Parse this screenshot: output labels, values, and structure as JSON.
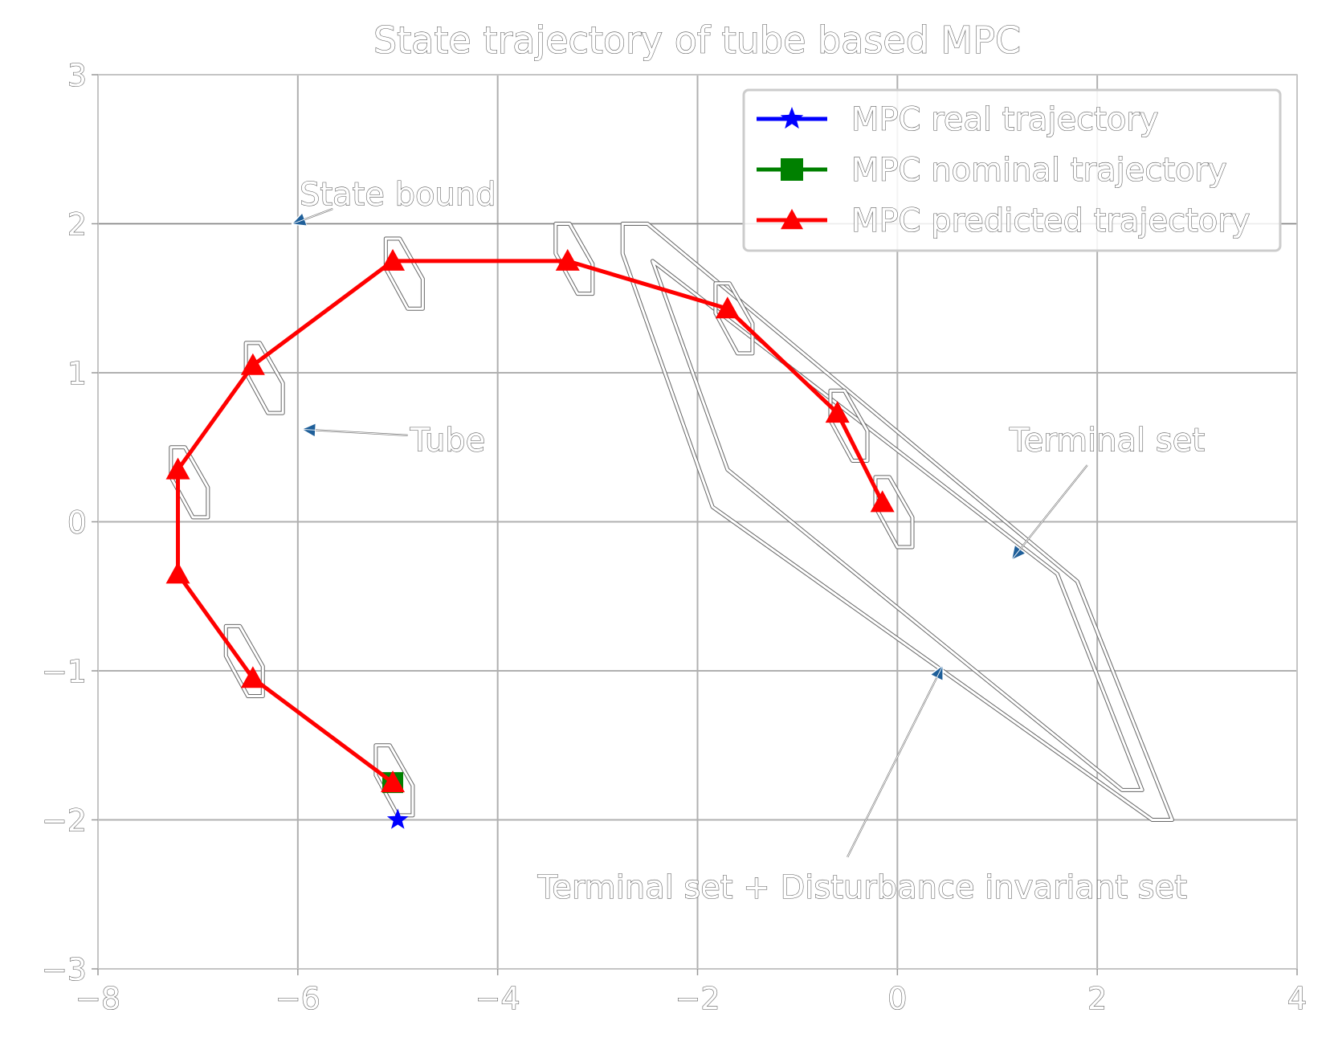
{
  "chart_data": {
    "type": "line",
    "title": "State trajectory of tube based MPC",
    "xlabel": "",
    "ylabel": "",
    "xlim": [
      -8,
      4
    ],
    "ylim": [
      -3,
      3
    ],
    "xticks": [
      -8,
      -6,
      -4,
      -2,
      0,
      2,
      4
    ],
    "yticks": [
      -3,
      -2,
      -1,
      0,
      1,
      2,
      3
    ],
    "xtick_labels": [
      "−8",
      "−6",
      "−4",
      "−2",
      "0",
      "2",
      "4"
    ],
    "ytick_labels": [
      "−3",
      "−2",
      "−1",
      "0",
      "1",
      "2",
      "3"
    ],
    "grid": true,
    "legend": "upper right",
    "series": [
      {
        "name": "MPC real trajectory",
        "color": "#0000ff",
        "marker": "star",
        "x": [
          -5.0
        ],
        "y": [
          -2.0
        ]
      },
      {
        "name": "MPC nominal trajectory",
        "color": "#008000",
        "marker": "square",
        "x": [
          -5.05
        ],
        "y": [
          -1.75
        ]
      },
      {
        "name": "MPC predicted trajectory",
        "color": "#ff0000",
        "marker": "triangle",
        "x": [
          -5.05,
          -6.45,
          -7.2,
          -7.2,
          -6.45,
          -5.05,
          -3.3,
          -1.7,
          -0.6,
          -0.15
        ],
        "y": [
          -1.75,
          -1.05,
          -0.35,
          0.35,
          1.05,
          1.75,
          1.75,
          1.43,
          0.73,
          0.13
        ]
      }
    ],
    "state_bound": {
      "y": 2
    },
    "tubes": [
      {
        "cx": -5.05,
        "cy": -1.75
      },
      {
        "cx": -6.55,
        "cy": -0.95
      },
      {
        "cx": -7.1,
        "cy": 0.25
      },
      {
        "cx": -6.35,
        "cy": 0.95
      },
      {
        "cx": -4.95,
        "cy": 1.65
      },
      {
        "cx": -3.25,
        "cy": 1.75
      },
      {
        "cx": -1.65,
        "cy": 1.35
      },
      {
        "cx": -0.5,
        "cy": 0.63
      },
      {
        "cx": -0.05,
        "cy": 0.05
      }
    ],
    "terminal_set_outer": [
      [
        -2.5,
        2.0
      ],
      [
        1.8,
        -0.4
      ],
      [
        2.75,
        -2.0
      ],
      [
        2.55,
        -2.0
      ],
      [
        -1.85,
        0.1
      ],
      [
        -2.75,
        1.8
      ],
      [
        -2.75,
        2.0
      ]
    ],
    "terminal_set_inner": [
      [
        -2.45,
        1.75
      ],
      [
        1.6,
        -0.35
      ],
      [
        2.45,
        -1.8
      ],
      [
        2.25,
        -1.8
      ],
      [
        -1.7,
        0.35
      ],
      [
        -2.45,
        1.75
      ]
    ],
    "annotations": [
      {
        "text": "State bound",
        "text_xy": [
          -5.0,
          2.2
        ],
        "arrow_from": [
          -5.65,
          2.1
        ],
        "arrow_to": [
          -6.05,
          2.0
        ]
      },
      {
        "text": "Tube",
        "text_xy": [
          -4.5,
          0.55
        ],
        "arrow_from": [
          -4.9,
          0.58
        ],
        "arrow_to": [
          -5.95,
          0.62
        ]
      },
      {
        "text": "Terminal set",
        "text_xy": [
          2.1,
          0.55
        ],
        "arrow_from": [
          1.9,
          0.38
        ],
        "arrow_to": [
          1.15,
          -0.25
        ]
      },
      {
        "text": "Terminal set + Disturbance invariant set",
        "text_xy": [
          -0.35,
          -2.45
        ],
        "arrow_from": [
          -0.5,
          -2.25
        ],
        "arrow_to": [
          0.45,
          -0.97
        ]
      }
    ]
  }
}
